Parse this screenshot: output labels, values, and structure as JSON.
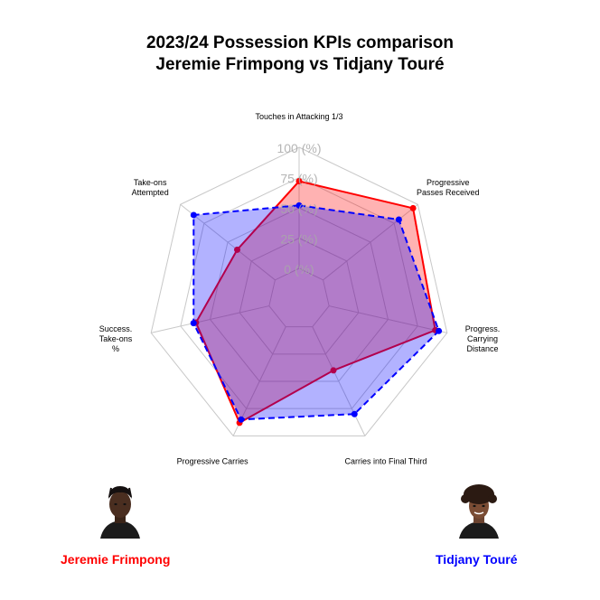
{
  "title_line1": "2023/24 Possession KPIs comparison",
  "title_line2": "Jeremie Frimpong vs Tidjany Touré",
  "players": [
    {
      "name": "Jeremie Frimpong",
      "color": "#ff0000",
      "avatar_icon": "player-portrait-icon"
    },
    {
      "name": "Tidjany Touré",
      "color": "#0000ff",
      "avatar_icon": "player-portrait-icon"
    }
  ],
  "chart_data": {
    "type": "radar",
    "axes": [
      [
        "Touches in Attacking 1/3"
      ],
      [
        "Progressive",
        "Passes Received"
      ],
      [
        "Progress.",
        "Carrying",
        "Distance"
      ],
      [
        "Carries into Final Third"
      ],
      [
        "Progressive Carries"
      ],
      [
        "Success.",
        "Take-ons",
        "%"
      ],
      [
        "Take-ons",
        "Attempted"
      ]
    ],
    "radial_ticks": [
      "0 (%)",
      "25 (%)",
      "50 (%)",
      "75 (%)",
      "100 (%)"
    ],
    "range": [
      0,
      100
    ],
    "grid": true,
    "series": [
      {
        "name": "Jeremie Frimpong",
        "color": "#ff0000",
        "fill": "rgba(255,0,0,0.3)",
        "dash": false,
        "values": [
          72,
          95,
          90,
          40,
          88,
          62,
          40
        ]
      },
      {
        "name": "Tidjany Touré",
        "color": "#0000ff",
        "fill": "rgba(0,0,255,0.3)",
        "dash": true,
        "values": [
          52,
          80,
          93,
          80,
          85,
          64,
          86
        ]
      }
    ]
  }
}
